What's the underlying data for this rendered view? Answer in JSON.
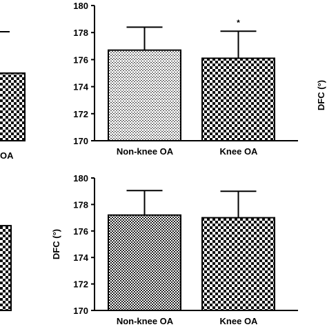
{
  "chart_data": [
    {
      "type": "bar",
      "panel": "top-right",
      "categories": [
        "Non-knee OA",
        "Knee OA"
      ],
      "values": [
        176.7,
        176.1
      ],
      "errors": [
        1.7,
        2.0
      ],
      "annotations": [
        "",
        "*"
      ],
      "ylim": [
        170,
        180
      ],
      "yticks": [
        "170",
        "172",
        "174",
        "176",
        "178",
        "180"
      ],
      "xlabel": "",
      "ylabel": ""
    },
    {
      "type": "bar",
      "panel": "bottom-right",
      "categories": [
        "Non-knee OA",
        "Knee OA"
      ],
      "values": [
        177.2,
        177.0
      ],
      "errors": [
        1.85,
        2.0
      ],
      "annotations": [
        "",
        ""
      ],
      "ylim": [
        170,
        180
      ],
      "yticks": [
        "170",
        "172",
        "174",
        "176",
        "178",
        "180"
      ],
      "xlabel": "",
      "ylabel": "DFC (°)"
    },
    {
      "type": "bar",
      "panel": "top-left (cropped)",
      "categories": [
        "OA"
      ],
      "values": [
        175.0
      ],
      "ylim": [
        170,
        180
      ]
    },
    {
      "type": "bar",
      "panel": "bottom-left (cropped)",
      "categories": [
        ""
      ],
      "values": [
        176.4
      ],
      "ylim": [
        170,
        180
      ]
    }
  ],
  "side_label": "DFC (°)"
}
